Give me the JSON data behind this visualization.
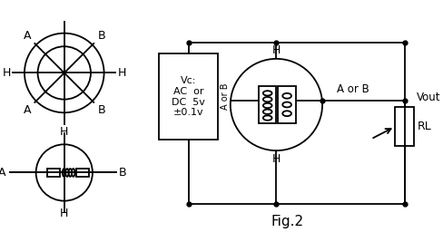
{
  "bg_color": "#ffffff",
  "line_color": "#000000",
  "title": "Fig.2",
  "box_label": "Vc:\nAC  or\nDC  5v\n±0.1v",
  "label_A_or_B": "A or B",
  "label_Vout": "Vout",
  "label_RL": "RL"
}
